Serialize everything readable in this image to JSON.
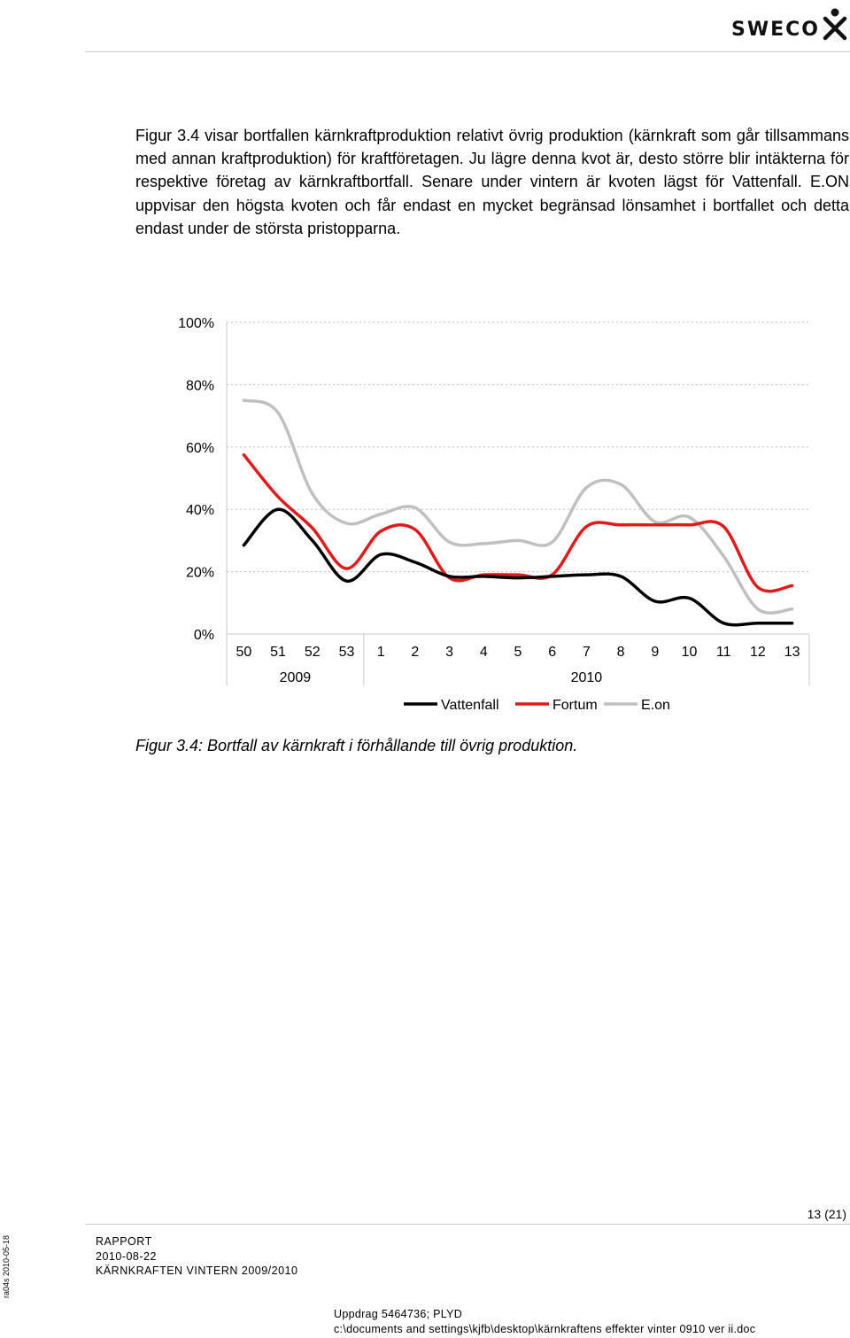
{
  "header": {
    "logo_text": "SWECO",
    "logo_icon": "sweco-figure-icon"
  },
  "body_paragraph": "Figur 3.4 visar bortfallen kärnkraftproduktion relativt övrig produktion (kärnkraft som går tillsammans med annan kraftproduktion) för kraftföretagen. Ju lägre denna kvot är, desto större blir intäkterna för respektive företag av kärnkraftbortfall. Senare under vintern är kvoten lägst för Vattenfall. E.ON uppvisar den högsta kvoten och får endast en mycket begränsad lönsamhet i bortfallet och detta endast under de största pristopparna.",
  "chart_data": {
    "type": "line",
    "title": "",
    "xlabel": "",
    "ylabel": "",
    "x": [
      "50",
      "51",
      "52",
      "53",
      "1",
      "2",
      "3",
      "4",
      "5",
      "6",
      "7",
      "8",
      "9",
      "10",
      "11",
      "12",
      "13"
    ],
    "x_groups": [
      {
        "label": "2009",
        "span": 4
      },
      {
        "label": "2010",
        "span": 13
      }
    ],
    "yticks": [
      "0%",
      "20%",
      "40%",
      "60%",
      "80%",
      "100%"
    ],
    "ylim": [
      0,
      100
    ],
    "grid": "dashed-horizontal",
    "legend": "bottom",
    "series": [
      {
        "name": "Vattenfall",
        "color": "#000000",
        "values": [
          28.5,
          40,
          30,
          17,
          25.5,
          23,
          18.5,
          18.5,
          18,
          18.5,
          19,
          18.5,
          10.5,
          11.5,
          3.5,
          3.5,
          3.5
        ]
      },
      {
        "name": "Fortum",
        "color": "#e01b1b",
        "values": [
          57.5,
          44,
          34,
          21,
          33,
          33.5,
          18,
          19,
          19,
          19,
          34.5,
          35,
          35,
          35,
          34.5,
          15,
          15.5
        ]
      },
      {
        "name": "E.on",
        "color": "#c0c0c0",
        "values": [
          75,
          71,
          45,
          35.5,
          38.5,
          40.5,
          29.5,
          29,
          30,
          29.5,
          47,
          48,
          36,
          37.5,
          25,
          8,
          8
        ]
      }
    ]
  },
  "caption": "Figur 3.4: Bortfall av kärnkraft i förhållande till övrig produktion.",
  "footer": {
    "page_number": "13 (21)",
    "doc_type": "RAPPORT",
    "date": "2010-08-22",
    "doc_title": "KÄRNKRAFTEN VINTERN 2009/2010",
    "side_tag": "ra04s 2010-05-18",
    "assignment": "Uppdrag 5464736; PLYD",
    "file_path": "c:\\documents and settings\\kjfb\\desktop\\kärnkraftens effekter vinter 0910 ver ii.doc"
  }
}
